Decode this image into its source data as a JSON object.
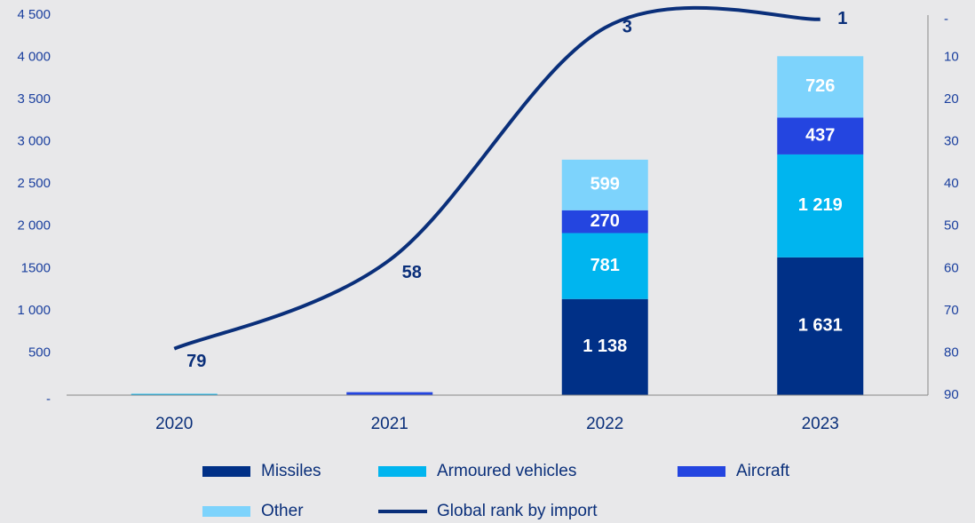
{
  "chart_data": {
    "type": "bar",
    "stacked": true,
    "categories": [
      "2020",
      "2021",
      "2022",
      "2023"
    ],
    "series": [
      {
        "name": "Missiles",
        "color": "#003087",
        "values": [
          0,
          0,
          1138,
          1631
        ],
        "value_labels": [
          null,
          null,
          "1 138",
          "1 631"
        ]
      },
      {
        "name": "Armoured vehicles",
        "color": "#00b5ef",
        "values": [
          15,
          0,
          781,
          1219
        ],
        "value_labels": [
          null,
          null,
          "781",
          "1 219"
        ]
      },
      {
        "name": "Aircraft",
        "color": "#2445e0",
        "values": [
          0,
          35,
          270,
          437
        ],
        "value_labels": [
          null,
          null,
          "270",
          "437"
        ]
      },
      {
        "name": "Other",
        "color": "#7dd3fc",
        "values": [
          0,
          0,
          599,
          726
        ],
        "value_labels": [
          null,
          null,
          "599",
          "726"
        ]
      },
      {
        "name": "Global rank by import",
        "type": "line",
        "axis": "y2",
        "color": "#0a2f7a",
        "values": [
          79,
          58,
          3,
          1
        ]
      }
    ],
    "ylim": [
      0,
      4500
    ],
    "yticks": [
      {
        "value": 0,
        "label": "-"
      },
      500,
      {
        "value": 1000,
        "label": "1 000"
      },
      {
        "value": 1500,
        "label": "1500"
      },
      {
        "value": 2000,
        "label": "2 000"
      },
      {
        "value": 2500,
        "label": "2 500"
      },
      {
        "value": 3000,
        "label": "3 000"
      },
      {
        "value": 3500,
        "label": "3 500"
      },
      {
        "value": 4000,
        "label": "4 000"
      },
      {
        "value": 4500,
        "label": "4 500"
      }
    ],
    "y2lim": [
      90,
      0
    ],
    "y2ticks": [
      {
        "value": 0,
        "label": "-"
      },
      10,
      20,
      30,
      40,
      50,
      60,
      70,
      80,
      90
    ]
  }
}
